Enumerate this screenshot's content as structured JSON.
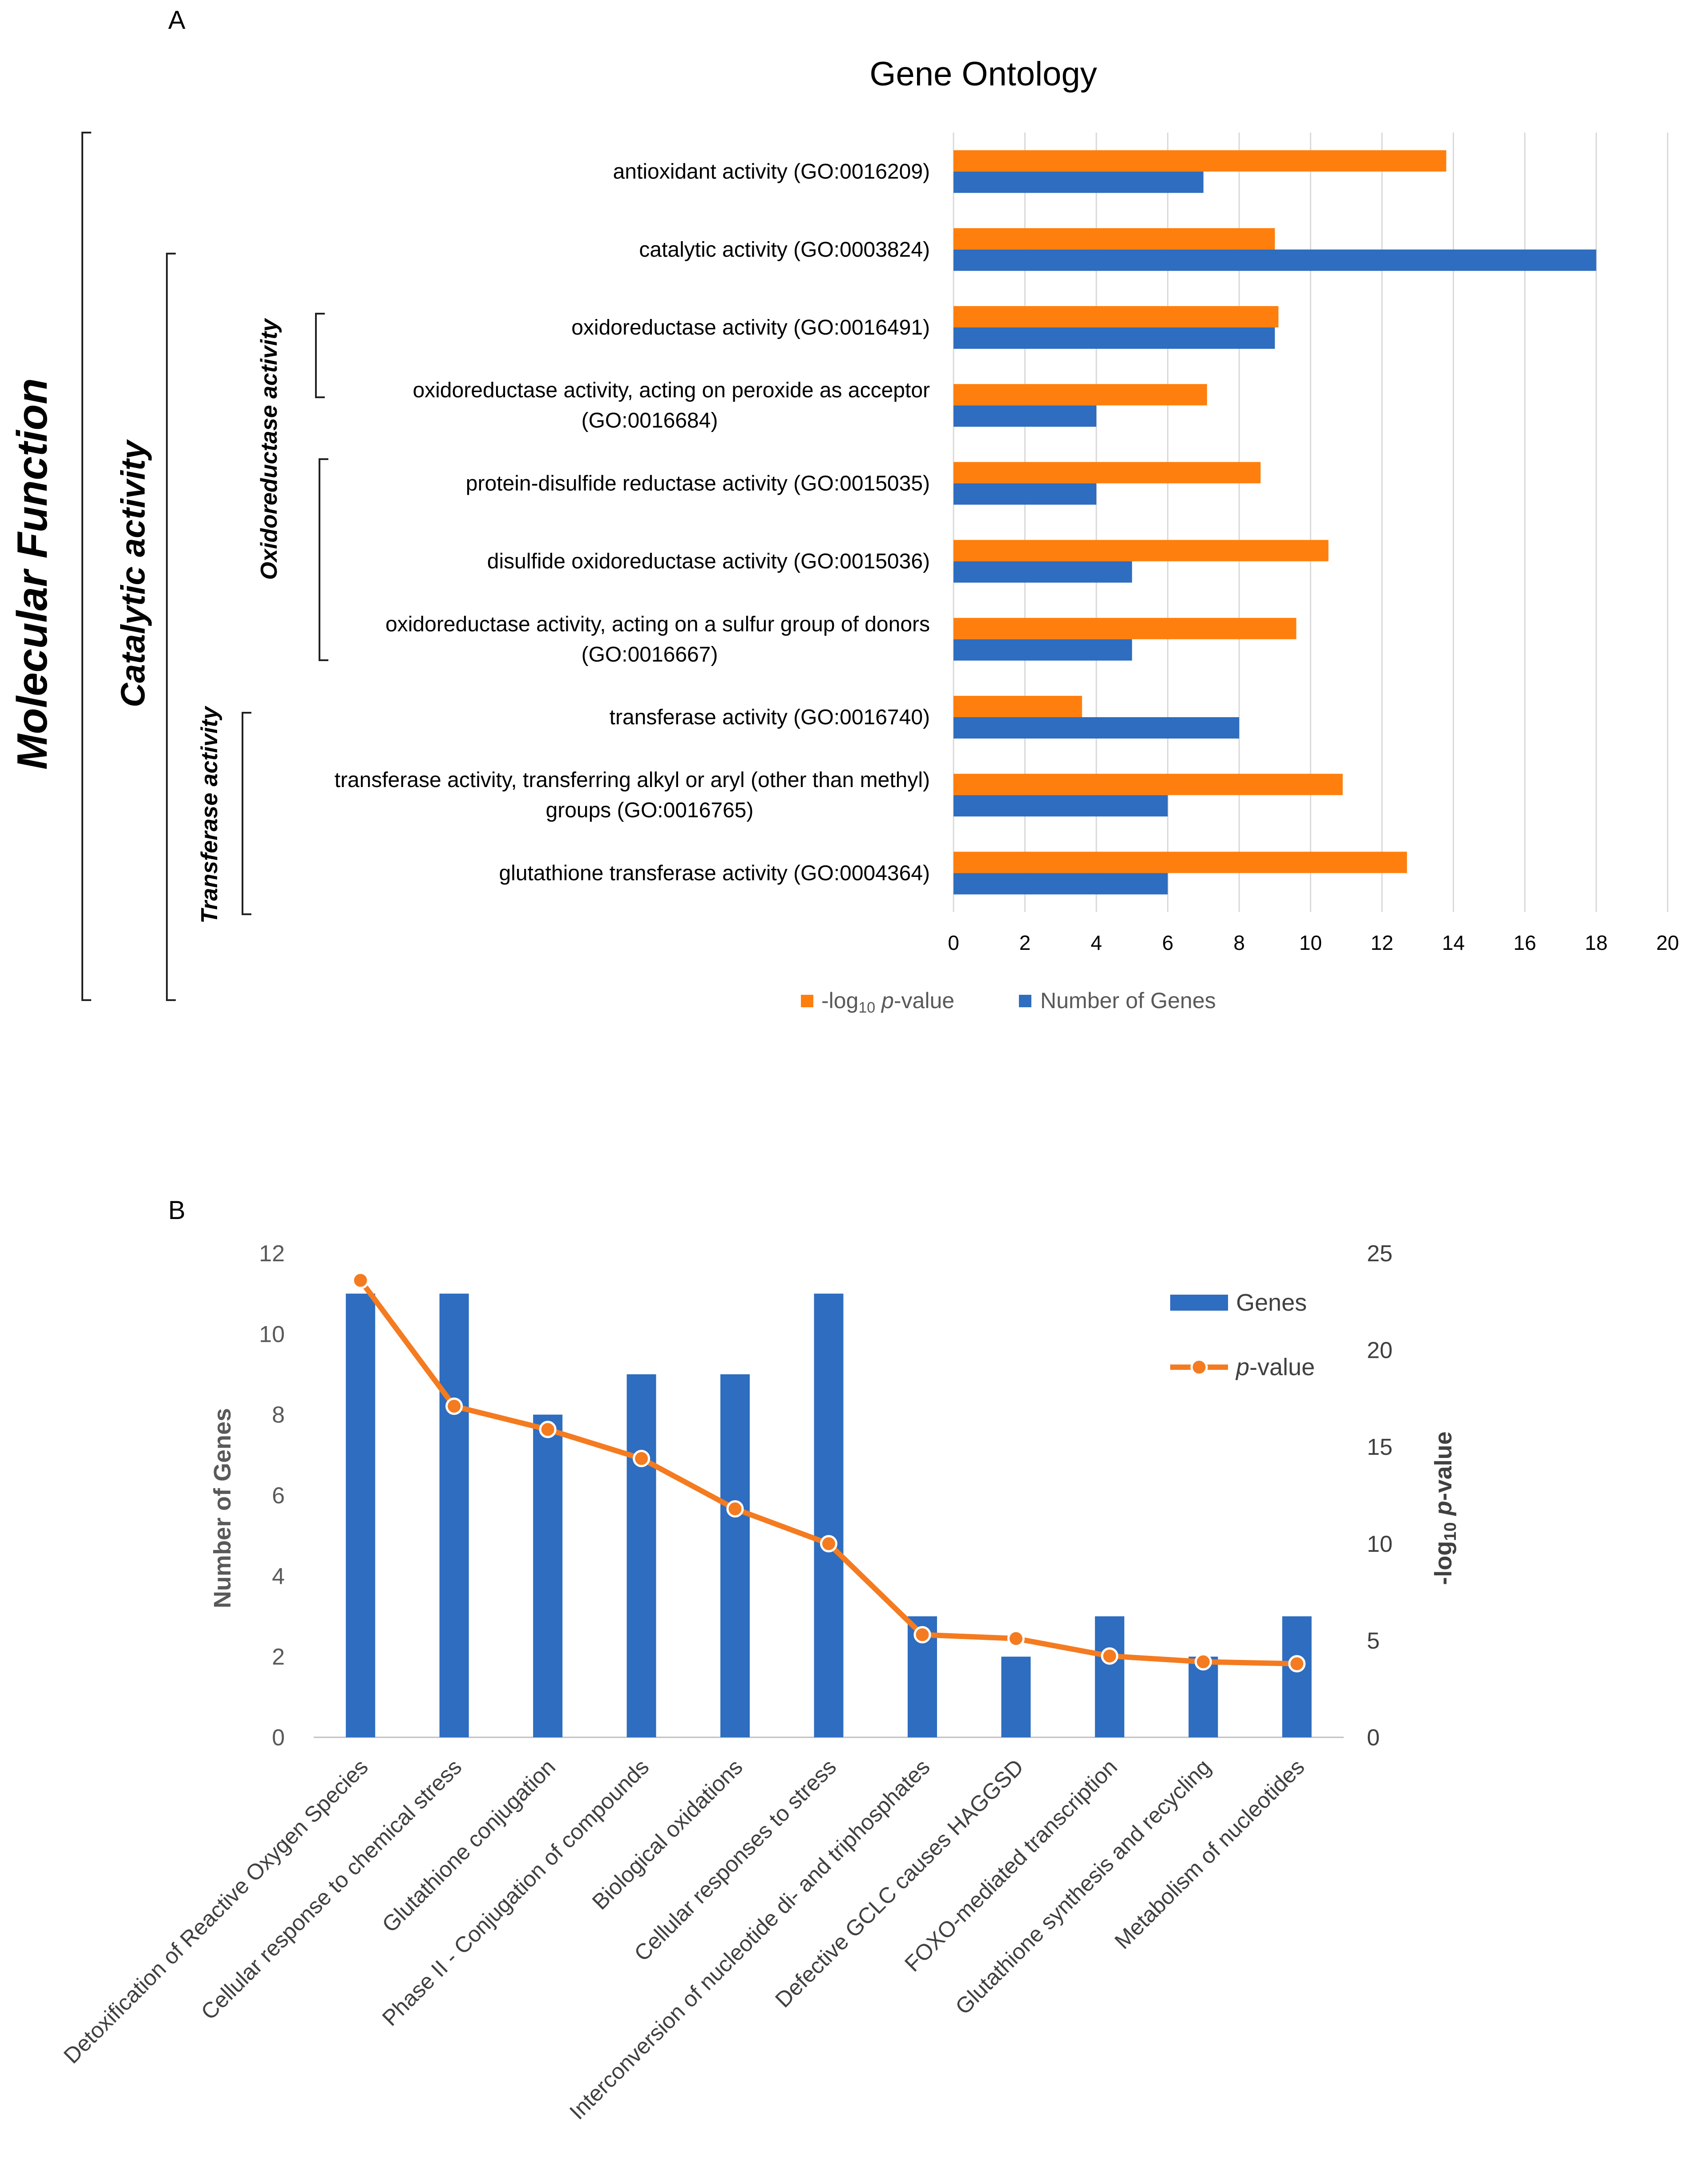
{
  "panel_a_letter": "A",
  "panel_b_letter": "B",
  "colors": {
    "orange": "#FF7F0E",
    "blue": "#2E6DBF",
    "grid": "#D9D9D9",
    "axis_text": "#404040",
    "gray_text": "#595959"
  },
  "panel_a_brackets": {
    "outer": "Molecular Function",
    "middle": "Catalytic activity",
    "oxido": "Oxidoreductase activity",
    "transferase": "Transferase activity"
  },
  "chart_data": [
    {
      "type": "bar",
      "orientation": "horizontal",
      "title": "Gene Ontology",
      "categories": [
        [
          "antioxidant activity (GO:0016209)"
        ],
        [
          "catalytic activity (GO:0003824)"
        ],
        [
          "oxidoreductase activity (GO:0016491)"
        ],
        [
          "oxidoreductase activity, acting on peroxide as acceptor",
          "(GO:0016684)"
        ],
        [
          "protein-disulfide reductase activity (GO:0015035)"
        ],
        [
          "disulfide oxidoreductase activity (GO:0015036)"
        ],
        [
          "oxidoreductase activity, acting on a sulfur group of donors",
          "(GO:0016667)"
        ],
        [
          "transferase activity (GO:0016740)"
        ],
        [
          "transferase activity, transferring alkyl or aryl (other than methyl)",
          "groups (GO:0016765)"
        ],
        [
          "glutathione transferase activity (GO:0004364)"
        ]
      ],
      "series": [
        {
          "name": "-log10 p-value",
          "legend_parts": [
            "-log",
            "10",
            " p",
            "-value"
          ],
          "color": "#FF7F0E",
          "values": [
            13.8,
            9.0,
            9.1,
            7.1,
            8.6,
            10.5,
            9.6,
            3.6,
            10.9,
            12.7
          ]
        },
        {
          "name": "Number of Genes",
          "color": "#2E6DBF",
          "values": [
            7,
            18,
            9,
            4,
            4,
            5,
            5,
            8,
            6,
            6
          ]
        }
      ],
      "xlim": [
        0,
        20
      ],
      "xticks": [
        "0",
        "2",
        "4",
        "6",
        "8",
        "10",
        "12",
        "14",
        "16",
        "18",
        "20"
      ],
      "grid": "vertical",
      "legend": "bottom"
    },
    {
      "type": "bar+line",
      "categories": [
        "Detoxification of Reactive Oxygen Species",
        "Cellular response to chemical stress",
        "Glutathione conjugation",
        "Phase II - Conjugation of compounds",
        "Biological oxidations",
        "Cellular responses to stress",
        "Interconversion of nucleotide di- and triphosphates",
        "Defective GCLC causes HAGGSD",
        "FOXO-mediated transcription",
        "Glutathione synthesis and recycling",
        "Metabolism of nucleotides"
      ],
      "series": [
        {
          "name": "Genes",
          "kind": "bar",
          "axis": "left",
          "color": "#2E6DBF",
          "values": [
            11,
            11,
            8,
            9,
            9,
            11,
            3,
            2,
            3,
            2,
            3
          ]
        },
        {
          "name": "p-value",
          "legend_parts": [
            "p",
            "-value"
          ],
          "kind": "line",
          "axis": "right",
          "color": "#F47B20",
          "values": [
            23.6,
            17.1,
            15.9,
            14.4,
            11.8,
            10.0,
            5.3,
            5.1,
            4.2,
            3.9,
            3.8
          ]
        }
      ],
      "ylabel_left": "Number of Genes",
      "ylabel_right_parts": [
        "-log",
        "10",
        " p",
        "-value"
      ],
      "ylim_left": [
        0,
        12
      ],
      "ylim_right": [
        0,
        25
      ],
      "yticks_left": [
        "0",
        "2",
        "4",
        "6",
        "8",
        "10",
        "12"
      ],
      "yticks_right": [
        "0",
        "5",
        "10",
        "15",
        "20",
        "25"
      ],
      "grid": false,
      "legend": "top-right"
    }
  ]
}
